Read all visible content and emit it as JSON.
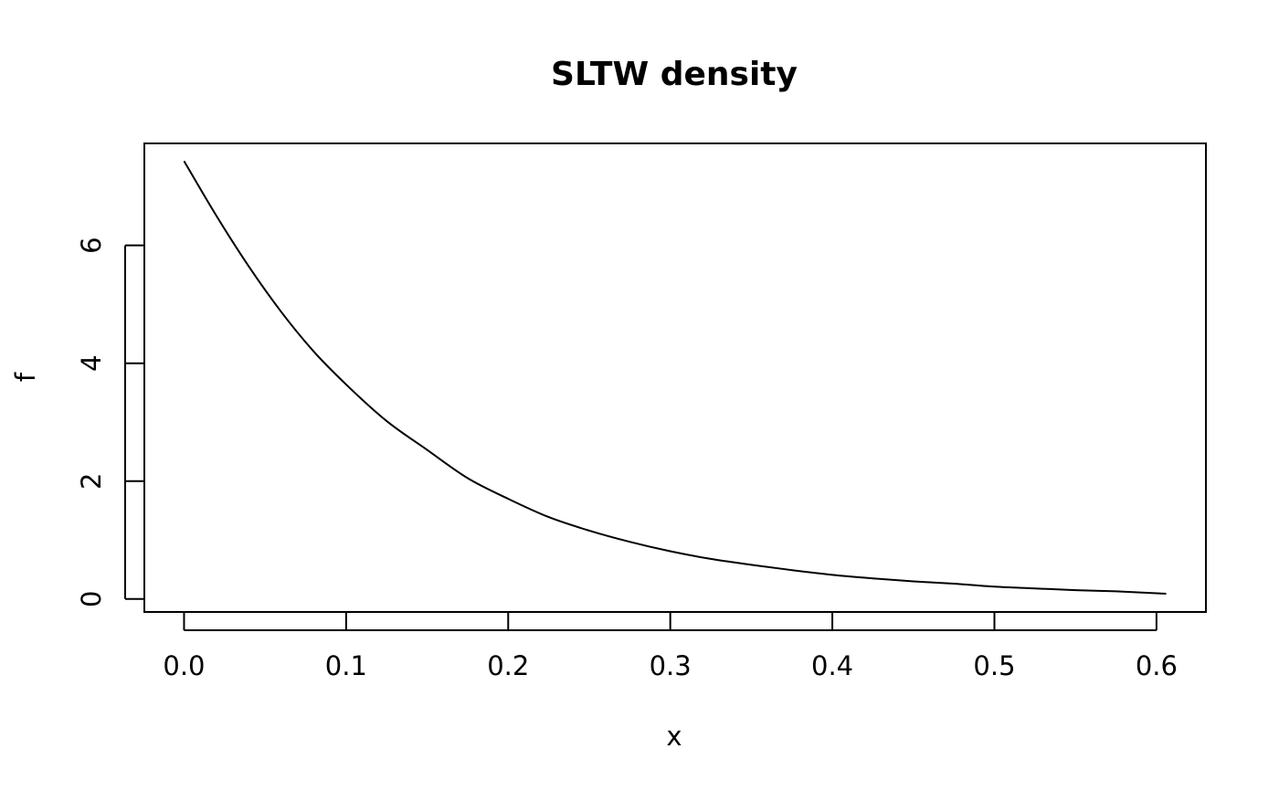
{
  "chart_data": {
    "type": "line",
    "title": "SLTW density",
    "xlabel": "x",
    "ylabel": "f",
    "xlim": [
      -0.0245,
      0.6305
    ],
    "ylim": [
      -0.22,
      7.73
    ],
    "xticks": [
      0.0,
      0.1,
      0.2,
      0.3,
      0.4,
      0.5,
      0.6
    ],
    "xtick_labels": [
      "0.0",
      "0.1",
      "0.2",
      "0.3",
      "0.4",
      "0.5",
      "0.6"
    ],
    "yticks": [
      0,
      2,
      4,
      6
    ],
    "ytick_labels": [
      "0",
      "2",
      "4",
      "6"
    ],
    "grid": false,
    "series": [
      {
        "color": "#000000",
        "x": [
          0.0,
          0.02,
          0.04,
          0.06,
          0.08,
          0.1,
          0.125,
          0.15,
          0.175,
          0.2,
          0.225,
          0.25,
          0.275,
          0.3,
          0.325,
          0.35,
          0.375,
          0.4,
          0.425,
          0.45,
          0.475,
          0.5,
          0.525,
          0.55,
          0.575,
          0.606
        ],
        "y": [
          7.43,
          6.5,
          5.64,
          4.87,
          4.2,
          3.64,
          3.02,
          2.53,
          2.05,
          1.7,
          1.39,
          1.16,
          0.97,
          0.81,
          0.68,
          0.58,
          0.49,
          0.41,
          0.35,
          0.3,
          0.26,
          0.21,
          0.18,
          0.15,
          0.13,
          0.09
        ]
      }
    ]
  }
}
